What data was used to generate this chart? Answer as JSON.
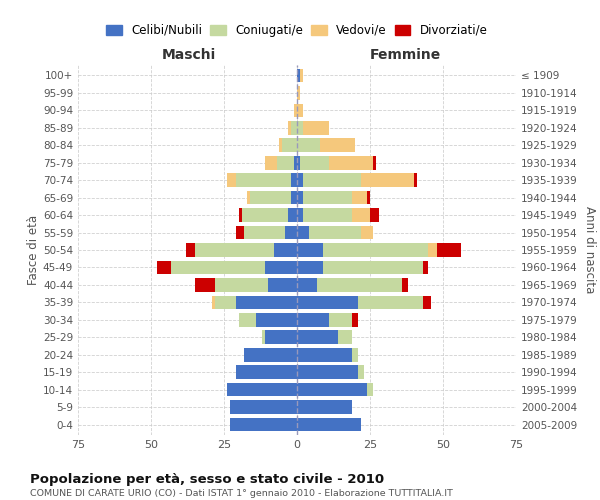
{
  "age_groups": [
    "0-4",
    "5-9",
    "10-14",
    "15-19",
    "20-24",
    "25-29",
    "30-34",
    "35-39",
    "40-44",
    "45-49",
    "50-54",
    "55-59",
    "60-64",
    "65-69",
    "70-74",
    "75-79",
    "80-84",
    "85-89",
    "90-94",
    "95-99",
    "100+"
  ],
  "birth_years": [
    "2005-2009",
    "2000-2004",
    "1995-1999",
    "1990-1994",
    "1985-1989",
    "1980-1984",
    "1975-1979",
    "1970-1974",
    "1965-1969",
    "1960-1964",
    "1955-1959",
    "1950-1954",
    "1945-1949",
    "1940-1944",
    "1935-1939",
    "1930-1934",
    "1925-1929",
    "1920-1924",
    "1915-1919",
    "1910-1914",
    "≤ 1909"
  ],
  "colors": {
    "celibi": "#4472C4",
    "coniugati": "#C5D9A0",
    "vedovi": "#F5C87C",
    "divorziati": "#CC0000"
  },
  "males": {
    "celibi": [
      23,
      23,
      24,
      21,
      18,
      11,
      14,
      21,
      10,
      11,
      8,
      4,
      3,
      2,
      2,
      1,
      0,
      0,
      0,
      0,
      0
    ],
    "coniugati": [
      0,
      0,
      0,
      0,
      0,
      1,
      6,
      7,
      18,
      32,
      27,
      14,
      16,
      14,
      19,
      6,
      5,
      2,
      0,
      0,
      0
    ],
    "vedovi": [
      0,
      0,
      0,
      0,
      0,
      0,
      0,
      1,
      0,
      0,
      0,
      0,
      0,
      1,
      3,
      4,
      1,
      1,
      1,
      0,
      0
    ],
    "divorziati": [
      0,
      0,
      0,
      0,
      0,
      0,
      0,
      0,
      7,
      5,
      3,
      3,
      1,
      0,
      0,
      0,
      0,
      0,
      0,
      0,
      0
    ]
  },
  "females": {
    "celibi": [
      22,
      19,
      24,
      21,
      19,
      14,
      11,
      21,
      7,
      9,
      9,
      4,
      2,
      2,
      2,
      1,
      0,
      0,
      0,
      0,
      1
    ],
    "coniugati": [
      0,
      0,
      2,
      2,
      2,
      5,
      8,
      22,
      29,
      34,
      36,
      18,
      17,
      17,
      20,
      10,
      8,
      2,
      0,
      0,
      0
    ],
    "vedovi": [
      0,
      0,
      0,
      0,
      0,
      0,
      0,
      0,
      0,
      0,
      3,
      4,
      6,
      5,
      18,
      15,
      12,
      9,
      2,
      1,
      1
    ],
    "divorziati": [
      0,
      0,
      0,
      0,
      0,
      0,
      2,
      3,
      2,
      2,
      8,
      0,
      3,
      1,
      1,
      1,
      0,
      0,
      0,
      0,
      0
    ]
  },
  "title": "Popolazione per età, sesso e stato civile - 2010",
  "subtitle": "COMUNE DI CARATE URIO (CO) - Dati ISTAT 1° gennaio 2010 - Elaborazione TUTTITALIA.IT",
  "xlabel_left": "Maschi",
  "xlabel_right": "Femmine",
  "ylabel_left": "Fasce di età",
  "ylabel_right": "Anni di nascita",
  "xlim": 75,
  "legend_labels": [
    "Celibi/Nubili",
    "Coniugati/e",
    "Vedovi/e",
    "Divorziati/e"
  ],
  "background_color": "#ffffff",
  "grid_color": "#cccccc"
}
